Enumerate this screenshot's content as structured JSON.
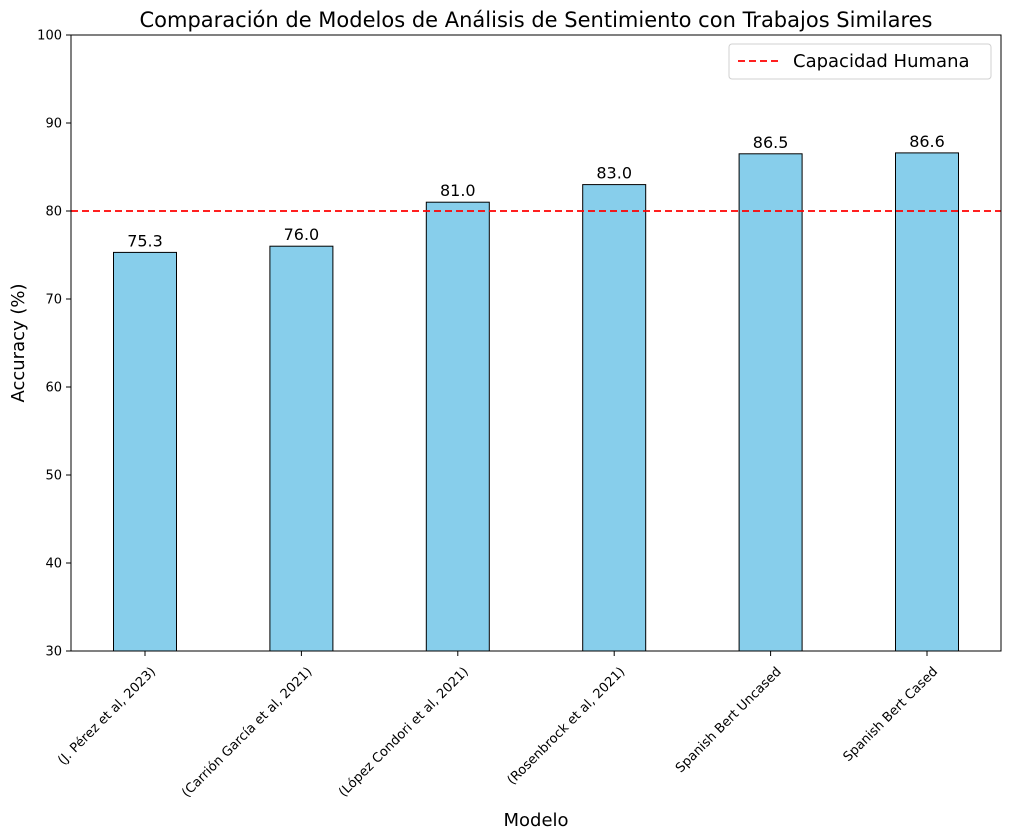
{
  "chart_data": {
    "type": "bar",
    "title": "Comparación de Modelos de Análisis de Sentimiento con Trabajos Similares",
    "xlabel": "Modelo",
    "ylabel": "Accuracy (%)",
    "ylim": [
      30,
      100
    ],
    "yticks": [
      30,
      40,
      50,
      60,
      70,
      80,
      90,
      100
    ],
    "categories": [
      "(J. Pérez et al, 2023)",
      "(Carrión García et al, 2021)",
      "(López Condori et al, 2021)",
      "(Rosenbrock et al, 2021)",
      "Spanish Bert Uncased",
      "Spanish Bert Cased"
    ],
    "values": [
      75.3,
      76.0,
      81.0,
      83.0,
      86.5,
      86.6
    ],
    "value_labels": [
      "75.3",
      "76.0",
      "81.0",
      "83.0",
      "86.5",
      "86.6"
    ],
    "bar_color": "#87ceeb",
    "bar_edge_color": "#000000",
    "reference_line": {
      "label": "Capacidad Humana",
      "value": 80,
      "color": "#ff0000",
      "style": "dashed"
    },
    "legend_placement": "top-right",
    "grid": false
  }
}
